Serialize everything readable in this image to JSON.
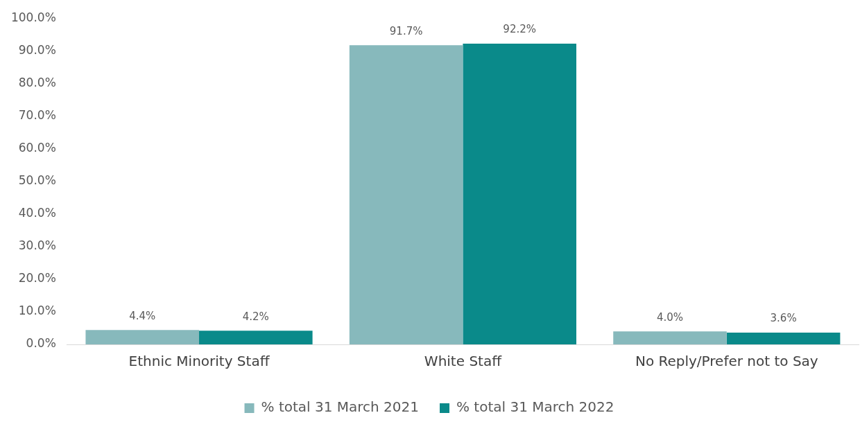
{
  "chart_data": {
    "type": "bar",
    "categories": [
      "Ethnic Minority Staff",
      "White Staff",
      "No Reply/Prefer not to Say"
    ],
    "series": [
      {
        "name": "% total 31 March 2021",
        "color": "#87b9bc",
        "values": [
          4.4,
          91.7,
          4.0
        ],
        "value_labels": [
          "4.4%",
          "91.7%",
          "4.0%"
        ]
      },
      {
        "name": "% total 31 March 2022",
        "color": "#0a8a8a",
        "values": [
          4.2,
          92.2,
          3.6
        ],
        "value_labels": [
          "4.2%",
          "92.2%",
          "3.6%"
        ]
      }
    ],
    "ylim": [
      0,
      100
    ],
    "yticks": [
      {
        "value": 0,
        "label": "0.0%"
      },
      {
        "value": 10,
        "label": "10.0%"
      },
      {
        "value": 20,
        "label": "20.0%"
      },
      {
        "value": 30,
        "label": "30.0%"
      },
      {
        "value": 40,
        "label": "40.0%"
      },
      {
        "value": 50,
        "label": "50.0%"
      },
      {
        "value": 60,
        "label": "60.0%"
      },
      {
        "value": 70,
        "label": "70.0%"
      },
      {
        "value": 80,
        "label": "80.0%"
      },
      {
        "value": 90,
        "label": "90.0%"
      },
      {
        "value": 100,
        "label": "100.0%"
      }
    ],
    "grid": false,
    "legend": "bottom"
  }
}
